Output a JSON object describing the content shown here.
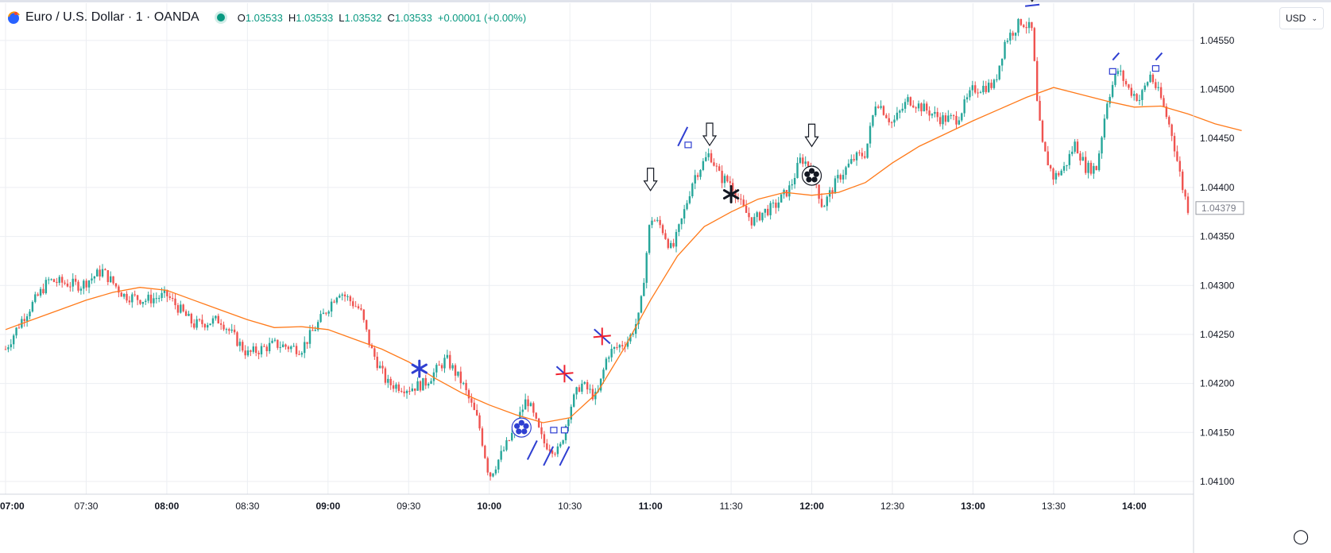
{
  "header": {
    "symbol": "Euro / U.S. Dollar · 1 · OANDA",
    "o_key": "O",
    "o_val": "1.03533",
    "h_key": "H",
    "h_val": "1.03533",
    "l_key": "L",
    "l_val": "1.03532",
    "c_key": "C",
    "c_val": "1.03533",
    "change": "+0.00001 (+0.00%)"
  },
  "currency": {
    "label": "USD"
  },
  "colors": {
    "up": "#26a69a",
    "down": "#ef5350",
    "ma": "#ff7a1a",
    "grid": "#eceef2",
    "axis_text": "#131722",
    "blue_marker": "#2f3fd1",
    "red_marker": "#f0212e"
  },
  "chart_data": {
    "type": "line",
    "title": "",
    "series": [
      {
        "values": [
          [
            0,
            1.04255
          ],
          [
            5,
            1.04265
          ],
          [
            10,
            1.04275
          ],
          [
            15,
            1.04285
          ],
          [
            20,
            1.04293
          ],
          [
            25,
            1.04298
          ],
          [
            30,
            1.04295
          ],
          [
            35,
            1.04285
          ],
          [
            40,
            1.04275
          ],
          [
            45,
            1.04265
          ],
          [
            50,
            1.04257
          ],
          [
            55,
            1.04258
          ],
          [
            60,
            1.04255
          ],
          [
            65,
            1.04245
          ],
          [
            70,
            1.04235
          ],
          [
            75,
            1.04222
          ],
          [
            80,
            1.04205
          ],
          [
            85,
            1.0419
          ],
          [
            90,
            1.04178
          ],
          [
            95,
            1.04168
          ],
          [
            100,
            1.0416
          ],
          [
            105,
            1.04165
          ],
          [
            110,
            1.0419
          ],
          [
            115,
            1.04235
          ],
          [
            120,
            1.04285
          ],
          [
            125,
            1.0433
          ],
          [
            130,
            1.0436
          ],
          [
            135,
            1.04375
          ],
          [
            140,
            1.04388
          ],
          [
            145,
            1.04395
          ],
          [
            150,
            1.04392
          ],
          [
            155,
            1.04395
          ],
          [
            160,
            1.04405
          ],
          [
            165,
            1.04425
          ],
          [
            170,
            1.04442
          ],
          [
            175,
            1.04455
          ],
          [
            180,
            1.04468
          ],
          [
            185,
            1.0448
          ],
          [
            190,
            1.04492
          ],
          [
            195,
            1.04502
          ],
          [
            200,
            1.04495
          ],
          [
            205,
            1.04488
          ],
          [
            210,
            1.04482
          ],
          [
            215,
            1.04483
          ],
          [
            220,
            1.04475
          ],
          [
            225,
            1.04465
          ],
          [
            230,
            1.04458
          ]
        ]
      }
    ],
    "x_ticks": [
      "07:00",
      "07:30",
      "08:00",
      "08:30",
      "09:00",
      "09:30",
      "10:00",
      "10:30",
      "11:00",
      "11:30",
      "12:00",
      "12:30",
      "13:00",
      "13:30",
      "14:00"
    ],
    "x_tick_index": [
      0,
      15,
      30,
      45,
      60,
      75,
      90,
      105,
      120,
      135,
      150,
      165,
      180,
      195,
      210
    ],
    "y_ticks": [
      "1.04550",
      "1.04500",
      "1.04450",
      "1.04400",
      "1.04350",
      "1.04300",
      "1.04250",
      "1.04200",
      "1.04150",
      "1.04100"
    ],
    "y_tick_values": [
      1.0455,
      1.045,
      1.0445,
      1.044,
      1.0435,
      1.043,
      1.0425,
      1.042,
      1.0415,
      1.041
    ],
    "ylim": [
      1.04087,
      1.04588
    ],
    "xlim": [
      0,
      220
    ],
    "price_label": "1.04379",
    "price_label_value": 1.04379,
    "candle_anchors": [
      [
        0,
        1.04235
      ],
      [
        3,
        1.04265
      ],
      [
        8,
        1.04305
      ],
      [
        14,
        1.043
      ],
      [
        18,
        1.04315
      ],
      [
        22,
        1.0429
      ],
      [
        26,
        1.04285
      ],
      [
        30,
        1.0429
      ],
      [
        35,
        1.0426
      ],
      [
        40,
        1.04265
      ],
      [
        45,
        1.0423
      ],
      [
        50,
        1.0424
      ],
      [
        55,
        1.04235
      ],
      [
        58,
        1.0426
      ],
      [
        62,
        1.04295
      ],
      [
        66,
        1.04275
      ],
      [
        68,
        1.04235
      ],
      [
        71,
        1.042
      ],
      [
        75,
        1.04195
      ],
      [
        78,
        1.042
      ],
      [
        82,
        1.04225
      ],
      [
        85,
        1.042
      ],
      [
        88,
        1.0416
      ],
      [
        90,
        1.04105
      ],
      [
        94,
        1.04145
      ],
      [
        97,
        1.04185
      ],
      [
        100,
        1.0414
      ],
      [
        103,
        1.0413
      ],
      [
        105,
        1.04175
      ],
      [
        107,
        1.042
      ],
      [
        110,
        1.04185
      ],
      [
        112,
        1.0423
      ],
      [
        116,
        1.04245
      ],
      [
        118,
        1.0427
      ],
      [
        120,
        1.0437
      ],
      [
        122,
        1.0436
      ],
      [
        124,
        1.04335
      ],
      [
        126,
        1.0437
      ],
      [
        128,
        1.0441
      ],
      [
        131,
        1.04435
      ],
      [
        133,
        1.0441
      ],
      [
        135,
        1.04405
      ],
      [
        137,
        1.0438
      ],
      [
        139,
        1.04365
      ],
      [
        141,
        1.04375
      ],
      [
        143,
        1.0438
      ],
      [
        146,
        1.044
      ],
      [
        148,
        1.0443
      ],
      [
        150,
        1.0442
      ],
      [
        152,
        1.0438
      ],
      [
        155,
        1.0441
      ],
      [
        158,
        1.0443
      ],
      [
        160,
        1.04435
      ],
      [
        162,
        1.0449
      ],
      [
        165,
        1.04465
      ],
      [
        168,
        1.0449
      ],
      [
        171,
        1.0448
      ],
      [
        174,
        1.0447
      ],
      [
        177,
        1.0447
      ],
      [
        180,
        1.045
      ],
      [
        184,
        1.04505
      ],
      [
        186,
        1.0455
      ],
      [
        189,
        1.0457
      ],
      [
        191,
        1.0456
      ],
      [
        192,
        1.0448
      ],
      [
        193,
        1.0444
      ],
      [
        195,
        1.0441
      ],
      [
        197,
        1.0442
      ],
      [
        199,
        1.04445
      ],
      [
        201,
        1.0442
      ],
      [
        203,
        1.0442
      ],
      [
        205,
        1.0449
      ],
      [
        207,
        1.0452
      ],
      [
        209,
        1.045
      ],
      [
        211,
        1.0449
      ],
      [
        213,
        1.04515
      ],
      [
        215,
        1.0449
      ],
      [
        217,
        1.04455
      ],
      [
        219,
        1.044
      ],
      [
        220,
        1.04379
      ]
    ]
  }
}
